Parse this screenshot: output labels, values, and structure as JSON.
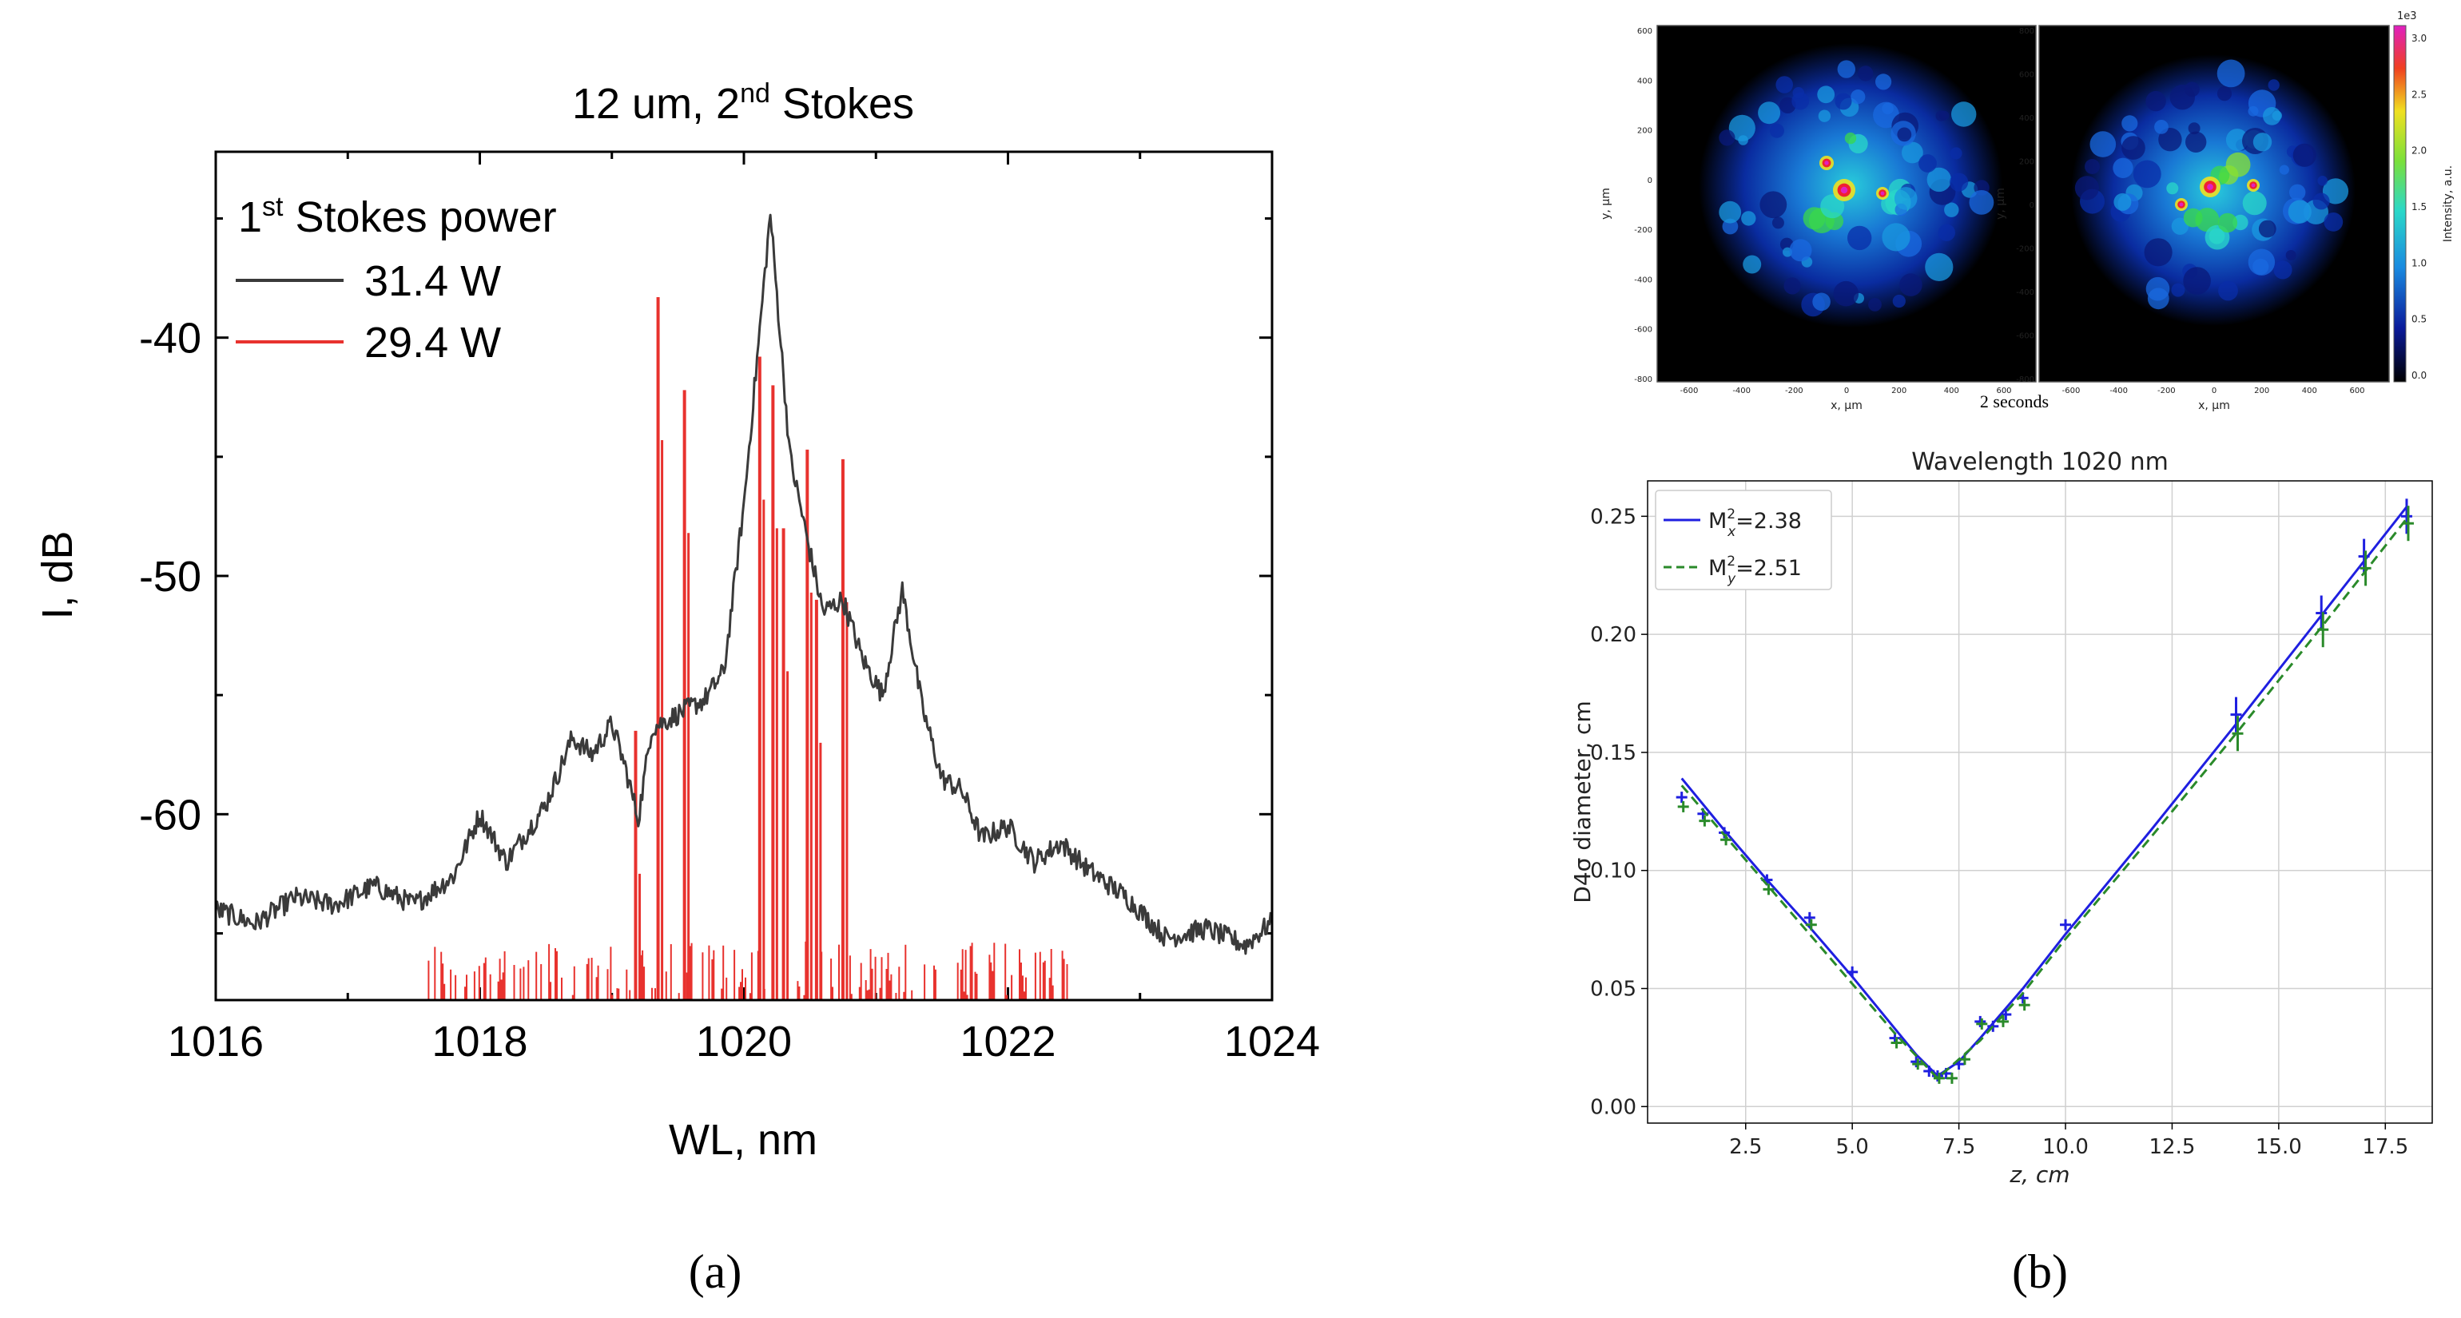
{
  "chart_data": [
    {
      "panel": "(a)",
      "type": "line",
      "title": "12 um, 2",
      "title_sup": "nd",
      "title_tail": " Stokes",
      "xlabel": "WL, nm",
      "ylabel": "I, dB",
      "xlim": [
        1016,
        1024
      ],
      "ylim": [
        -67.8,
        -32.2
      ],
      "xticks": [
        1016,
        1018,
        1020,
        1022,
        1024
      ],
      "yticks": [
        -40,
        -50,
        -60
      ],
      "legend_title_sup": "st",
      "legend_title_pre": "1",
      "legend_title_rest": " Stokes power",
      "series": [
        {
          "name": "31.4 W",
          "color": "#3a3a3a",
          "points": [
            [
              1016.0,
              -64.0
            ],
            [
              1016.3,
              -64.6
            ],
            [
              1016.6,
              -63.5
            ],
            [
              1016.9,
              -63.8
            ],
            [
              1017.2,
              -63.0
            ],
            [
              1017.5,
              -63.8
            ],
            [
              1017.8,
              -62.6
            ],
            [
              1018.0,
              -60.0
            ],
            [
              1018.2,
              -62.0
            ],
            [
              1018.5,
              -59.6
            ],
            [
              1018.7,
              -56.8
            ],
            [
              1018.85,
              -57.5
            ],
            [
              1019.0,
              -56.2
            ],
            [
              1019.1,
              -58.0
            ],
            [
              1019.2,
              -60.2
            ],
            [
              1019.3,
              -56.4
            ],
            [
              1019.5,
              -55.8
            ],
            [
              1019.7,
              -55.2
            ],
            [
              1019.85,
              -54.0
            ],
            [
              1020.0,
              -47.0
            ],
            [
              1020.2,
              -34.8
            ],
            [
              1020.35,
              -45.0
            ],
            [
              1020.5,
              -49.0
            ],
            [
              1020.6,
              -51.5
            ],
            [
              1020.75,
              -51.0
            ],
            [
              1020.9,
              -53.5
            ],
            [
              1021.05,
              -55.0
            ],
            [
              1021.2,
              -50.6
            ],
            [
              1021.35,
              -55.5
            ],
            [
              1021.5,
              -58.5
            ],
            [
              1021.65,
              -59.0
            ],
            [
              1021.8,
              -61.0
            ],
            [
              1022.0,
              -60.5
            ],
            [
              1022.2,
              -62.0
            ],
            [
              1022.4,
              -61.2
            ],
            [
              1022.6,
              -62.3
            ],
            [
              1022.9,
              -63.5
            ],
            [
              1023.2,
              -65.2
            ],
            [
              1023.5,
              -64.8
            ],
            [
              1023.8,
              -65.5
            ],
            [
              1024.0,
              -64.5
            ]
          ]
        },
        {
          "name": "29.4 W",
          "color": "#e8322e",
          "floor": -67.8,
          "peaks": [
            [
              1019.18,
              -56.5
            ],
            [
              1019.35,
              -38.3
            ],
            [
              1019.55,
              -42.2
            ],
            [
              1020.12,
              -40.8
            ],
            [
              1020.22,
              -42.0
            ],
            [
              1020.3,
              -48.0
            ],
            [
              1020.48,
              -44.7
            ],
            [
              1020.55,
              -51.0
            ],
            [
              1020.75,
              -45.1
            ]
          ]
        }
      ]
    },
    {
      "panel": "(b)",
      "type": "line",
      "title": "Wavelength 1020 nm",
      "xlabel": "z, cm",
      "ylabel": "D4σ diameter, cm",
      "xlim": [
        0.2,
        18.6
      ],
      "ylim": [
        -0.007,
        0.265
      ],
      "xticks": [
        "2.5",
        "5.0",
        "7.5",
        "10.0",
        "12.5",
        "15.0",
        "17.5"
      ],
      "yticks": [
        "0.00",
        "0.05",
        "0.10",
        "0.15",
        "0.20",
        "0.25"
      ],
      "series": [
        {
          "name": "M²x=2.38",
          "legend_base": "M",
          "legend_sup": "2",
          "legend_sub": "x",
          "legend_val": "=2.38",
          "color": "#1f1fe0",
          "style": "solid",
          "fit": [
            [
              1.0,
              0.139
            ],
            [
              2.0,
              0.117
            ],
            [
              3.0,
              0.096
            ],
            [
              4.0,
              0.076
            ],
            [
              5.0,
              0.055
            ],
            [
              6.0,
              0.033
            ],
            [
              6.5,
              0.022
            ],
            [
              7.0,
              0.013
            ],
            [
              7.5,
              0.019
            ],
            [
              8.0,
              0.029
            ],
            [
              9.0,
              0.05
            ],
            [
              10.0,
              0.073
            ],
            [
              12.0,
              0.117
            ],
            [
              14.0,
              0.162
            ],
            [
              16.0,
              0.208
            ],
            [
              18.0,
              0.254
            ]
          ],
          "measured": [
            [
              1.0,
              0.131
            ],
            [
              1.5,
              0.124
            ],
            [
              2.0,
              0.116
            ],
            [
              3.0,
              0.096
            ],
            [
              4.0,
              0.08
            ],
            [
              5.0,
              0.057
            ],
            [
              6.0,
              0.029
            ],
            [
              6.5,
              0.019
            ],
            [
              6.8,
              0.015
            ],
            [
              7.0,
              0.013
            ],
            [
              7.2,
              0.014
            ],
            [
              7.5,
              0.018
            ],
            [
              8.0,
              0.036
            ],
            [
              8.3,
              0.034
            ],
            [
              8.6,
              0.039
            ],
            [
              9.0,
              0.046
            ],
            [
              10.0,
              0.077
            ],
            [
              14.0,
              0.166
            ],
            [
              16.0,
              0.209
            ],
            [
              17.0,
              0.233
            ],
            [
              18.0,
              0.25
            ]
          ]
        },
        {
          "name": "M²y=2.51",
          "legend_base": "M",
          "legend_sup": "2",
          "legend_sub": "y",
          "legend_val": "=2.51",
          "color": "#2a8a2a",
          "style": "dashed",
          "fit": [
            [
              1.0,
              0.136
            ],
            [
              2.0,
              0.115
            ],
            [
              3.0,
              0.094
            ],
            [
              4.0,
              0.073
            ],
            [
              5.0,
              0.052
            ],
            [
              6.0,
              0.031
            ],
            [
              7.0,
              0.012
            ],
            [
              8.0,
              0.028
            ],
            [
              9.0,
              0.048
            ],
            [
              10.0,
              0.071
            ],
            [
              12.0,
              0.114
            ],
            [
              14.0,
              0.158
            ],
            [
              16.0,
              0.203
            ],
            [
              18.0,
              0.249
            ]
          ],
          "measured": [
            [
              1.0,
              0.127
            ],
            [
              1.5,
              0.121
            ],
            [
              2.0,
              0.113
            ],
            [
              3.0,
              0.092
            ],
            [
              4.0,
              0.077
            ],
            [
              6.0,
              0.027
            ],
            [
              6.5,
              0.018
            ],
            [
              7.0,
              0.012
            ],
            [
              7.3,
              0.012
            ],
            [
              7.6,
              0.02
            ],
            [
              8.0,
              0.035
            ],
            [
              8.5,
              0.036
            ],
            [
              9.0,
              0.043
            ],
            [
              14.0,
              0.158
            ],
            [
              16.0,
              0.202
            ],
            [
              17.0,
              0.228
            ],
            [
              18.0,
              0.247
            ]
          ]
        }
      ]
    }
  ],
  "beam_images": {
    "caption": "2 seconds",
    "left": {
      "xlabel": "x, μm",
      "ylabel": "y, μm",
      "xticks": [
        "-600",
        "-400",
        "-200",
        "0",
        "200",
        "400",
        "600"
      ],
      "yticks": [
        "600",
        "400",
        "200",
        "0",
        "-200",
        "-400",
        "-600",
        "-800"
      ]
    },
    "right": {
      "xlabel": "x, μm",
      "ylabel": "y, μm",
      "xticks": [
        "-600",
        "-400",
        "-200",
        "0",
        "200",
        "400",
        "600"
      ],
      "yticks": [
        "800",
        "600",
        "400",
        "200",
        "0",
        "-200",
        "-400",
        "-600",
        "-800"
      ]
    },
    "colorbar": {
      "label": "Intensity, a.u.",
      "exponent": "1e3",
      "ticks": [
        "3.0",
        "2.5",
        "2.0",
        "1.5",
        "1.0",
        "0.5",
        "0.0"
      ]
    }
  },
  "panel_labels": {
    "a": "(a)",
    "b": "(b)"
  }
}
